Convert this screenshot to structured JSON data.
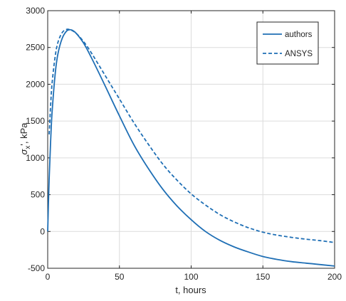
{
  "chart_data": {
    "type": "line",
    "title": "",
    "xlabel": "t, hours",
    "ylabel": {
      "symbol": "σ",
      "subscript": "x",
      "suffix": "', kPa"
    },
    "xlim": [
      0,
      200
    ],
    "ylim": [
      -500,
      3000
    ],
    "xticks": [
      0,
      50,
      100,
      150,
      200
    ],
    "yticks": [
      -500,
      0,
      500,
      1000,
      1500,
      2000,
      2500,
      3000
    ],
    "xtick_labels": [
      "0",
      "50",
      "100",
      "150",
      "200"
    ],
    "ytick_labels": [
      "-500",
      "0",
      "500",
      "1000",
      "1500",
      "2000",
      "2500",
      "3000"
    ],
    "grid": true,
    "legend_position": "top-right",
    "color": "#1f6fb5",
    "series": [
      {
        "name": "authors",
        "style": "solid",
        "x": [
          0,
          1,
          2,
          3,
          5,
          7,
          10,
          13,
          15,
          17,
          20,
          25,
          30,
          40,
          50,
          60,
          70,
          80,
          90,
          100,
          110,
          120,
          130,
          140,
          150,
          160,
          170,
          180,
          190,
          200
        ],
        "y": [
          0,
          700,
          1200,
          1600,
          2100,
          2400,
          2620,
          2720,
          2740,
          2735,
          2690,
          2560,
          2380,
          1980,
          1570,
          1180,
          860,
          580,
          350,
          160,
          0,
          -120,
          -210,
          -280,
          -340,
          -380,
          -410,
          -430,
          -450,
          -470
        ]
      },
      {
        "name": "ANSYS",
        "style": "dashed",
        "x": [
          1,
          2,
          3,
          5,
          7,
          10,
          13,
          15,
          17,
          20,
          25,
          30,
          40,
          50,
          60,
          70,
          80,
          90,
          100,
          110,
          120,
          130,
          140,
          150,
          160,
          170,
          180,
          190,
          200
        ],
        "y": [
          1320,
          1700,
          2000,
          2350,
          2560,
          2700,
          2745,
          2745,
          2730,
          2690,
          2580,
          2440,
          2120,
          1800,
          1480,
          1190,
          920,
          700,
          510,
          360,
          230,
          130,
          50,
          -10,
          -50,
          -80,
          -105,
          -125,
          -150
        ]
      }
    ]
  }
}
